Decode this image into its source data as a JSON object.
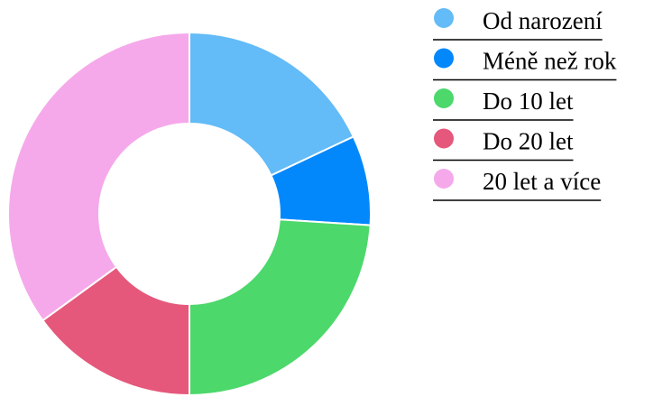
{
  "chart_data": {
    "type": "donut",
    "categories": [
      "Od narození",
      "Méně než rok",
      "Do 10 let",
      "Do 20 let",
      "20 let a více"
    ],
    "values": [
      18,
      8,
      24,
      15,
      35
    ],
    "colors": [
      "#63bbf7",
      "#0388fb",
      "#4cd86b",
      "#e5587b",
      "#f5a9ea"
    ],
    "legend": "right"
  }
}
